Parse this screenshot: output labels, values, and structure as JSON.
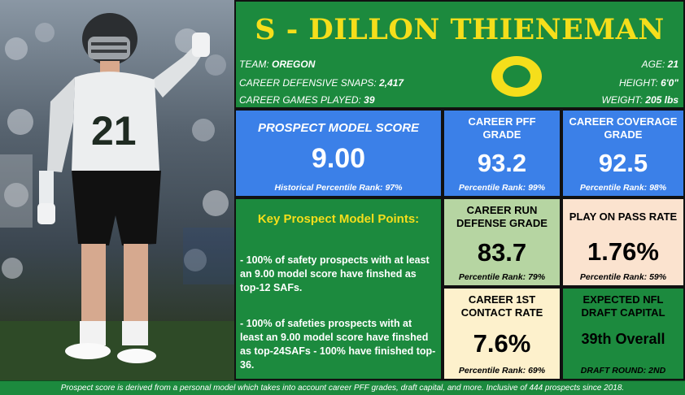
{
  "player": {
    "title": "S - DILLON THIENEMAN",
    "team_label": "TEAM:",
    "team_value": "OREGON",
    "snaps_label": "CAREER DEFENSIVE SNAPS:",
    "snaps_value": "2,417",
    "games_label": "CAREER GAMES PLAYED:",
    "games_value": "39",
    "age_label": "AGE:",
    "age_value": "21",
    "height_label": "HEIGHT:",
    "height_value": "6'0\"",
    "weight_label": "WEIGHT:",
    "weight_value": "205 lbs",
    "jersey_number": "21",
    "logo_letter": "O"
  },
  "model_score": {
    "title": "PROSPECT MODEL SCORE",
    "value": "9.00",
    "rank": "Historical Percentile Rank: 97%"
  },
  "pff_grade": {
    "title_line1": "CAREER PFF",
    "title_line2": "GRADE",
    "value": "93.2",
    "rank": "Percentile Rank: 99%"
  },
  "coverage_grade": {
    "title_line1": "CAREER COVERAGE",
    "title_line2": "GRADE",
    "value": "92.5",
    "rank": "Percentile Rank: 98%"
  },
  "key_points": {
    "title": "Key Prospect Model Points:",
    "point1": "- 100% of safety prospects with at least an 9.00 model score have finshed as top-12 SAFs.",
    "point2": "- 100% of safeties prospects with at least an 9.00 model score have finshed as top-24SAFs - 100% have finished top-36."
  },
  "run_defense": {
    "title_line1": "CAREER RUN",
    "title_line2": "DEFENSE GRADE",
    "value": "83.7",
    "rank": "Percentile Rank: 79%"
  },
  "pass_rate": {
    "title": "PLAY ON PASS RATE",
    "value": "1.76%",
    "rank": "Percentile Rank: 59%"
  },
  "contact_rate": {
    "title_line1": "CAREER 1ST",
    "title_line2": "CONTACT RATE",
    "value": "7.6%",
    "rank": "Percentile Rank: 69%"
  },
  "draft_capital": {
    "title_line1": "EXPECTED NFL",
    "title_line2": "DRAFT CAPITAL",
    "value": "39th Overall",
    "round": "DRAFT ROUND: 2ND"
  },
  "footer": "Prospect score is derived from a personal model which takes into account career PFF grades, draft capital, and more. Inclusive of 444 prospects since 2018.",
  "colors": {
    "green": "#1c8a3e",
    "yellow": "#f5de1b",
    "blue": "#3b80e8",
    "sage": "#b6d5a2",
    "peach": "#fbe3cf",
    "cream": "#fdf1cc"
  }
}
